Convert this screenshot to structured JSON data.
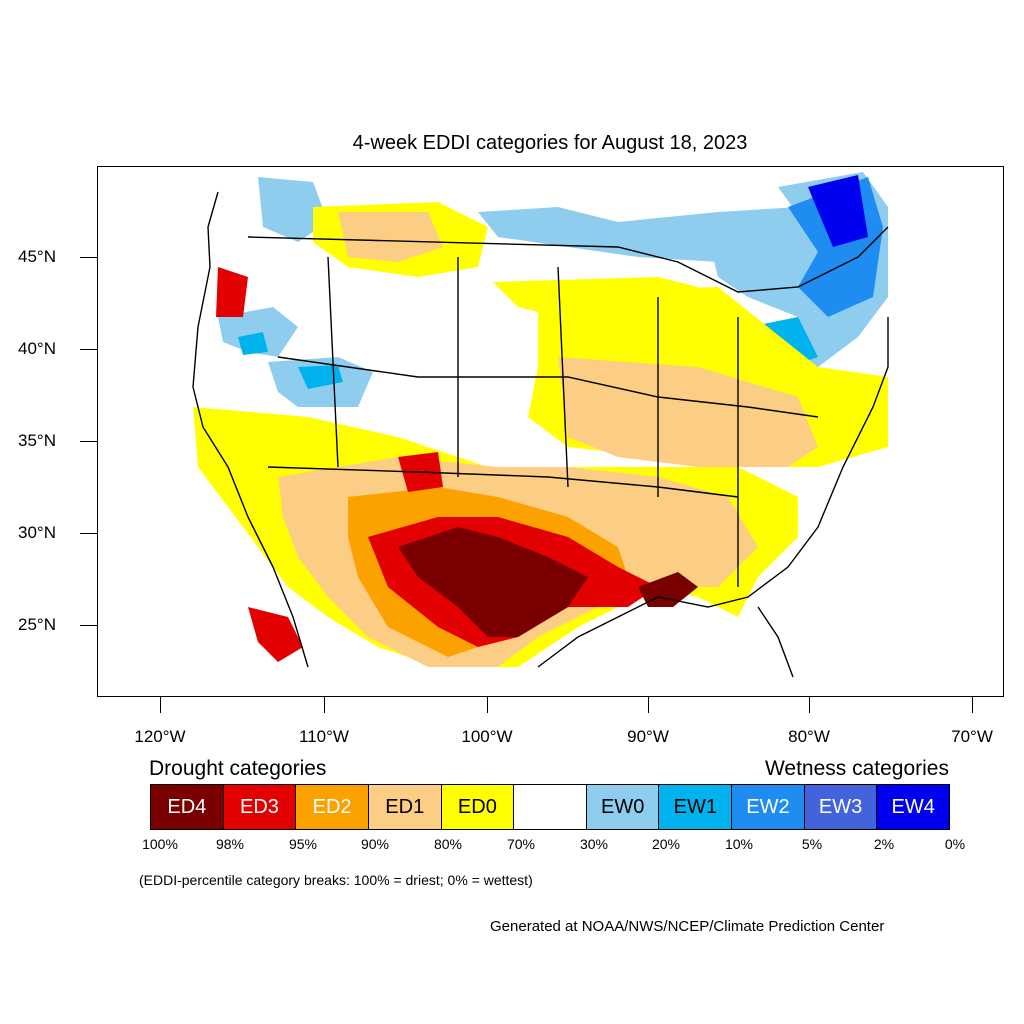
{
  "title": "4-week EDDI categories for August 18, 2023",
  "latitude_labels": [
    "45°N",
    "40°N",
    "35°N",
    "30°N",
    "25°N"
  ],
  "longitude_labels": [
    "120°W",
    "110°W",
    "100°W",
    "90°W",
    "80°W",
    "70°W"
  ],
  "legend": {
    "drought_heading": "Drought categories",
    "wetness_heading": "Wetness categories",
    "categories": [
      {
        "label": "ED4",
        "color": "#7a0000",
        "text_color": "#ffffff"
      },
      {
        "label": "ED3",
        "color": "#e30000",
        "text_color": "#ffffff"
      },
      {
        "label": "ED2",
        "color": "#fba100",
        "text_color": "#ffffff"
      },
      {
        "label": "ED1",
        "color": "#fbcd85",
        "text_color": "#000000"
      },
      {
        "label": "ED0",
        "color": "#ffff00",
        "text_color": "#000000"
      },
      {
        "label": "",
        "color": "#ffffff",
        "text_color": "#000000"
      },
      {
        "label": "EW0",
        "color": "#8fcdee",
        "text_color": "#000000"
      },
      {
        "label": "EW1",
        "color": "#00b3ef",
        "text_color": "#000000"
      },
      {
        "label": "EW2",
        "color": "#1e8cf0",
        "text_color": "#ffffff"
      },
      {
        "label": "EW3",
        "color": "#4263db",
        "text_color": "#ffffff"
      },
      {
        "label": "EW4",
        "color": "#0000f0",
        "text_color": "#ffffff"
      }
    ],
    "percentile_breaks": [
      "100%",
      "98%",
      "95%",
      "90%",
      "80%",
      "70%",
      "30%",
      "20%",
      "10%",
      "5%",
      "2%",
      "0%"
    ]
  },
  "note": "(EDDI-percentile category breaks: 100% = driest; 0% = wettest)",
  "credit": "Generated at NOAA/NWS/NCEP/Climate Prediction Center"
}
